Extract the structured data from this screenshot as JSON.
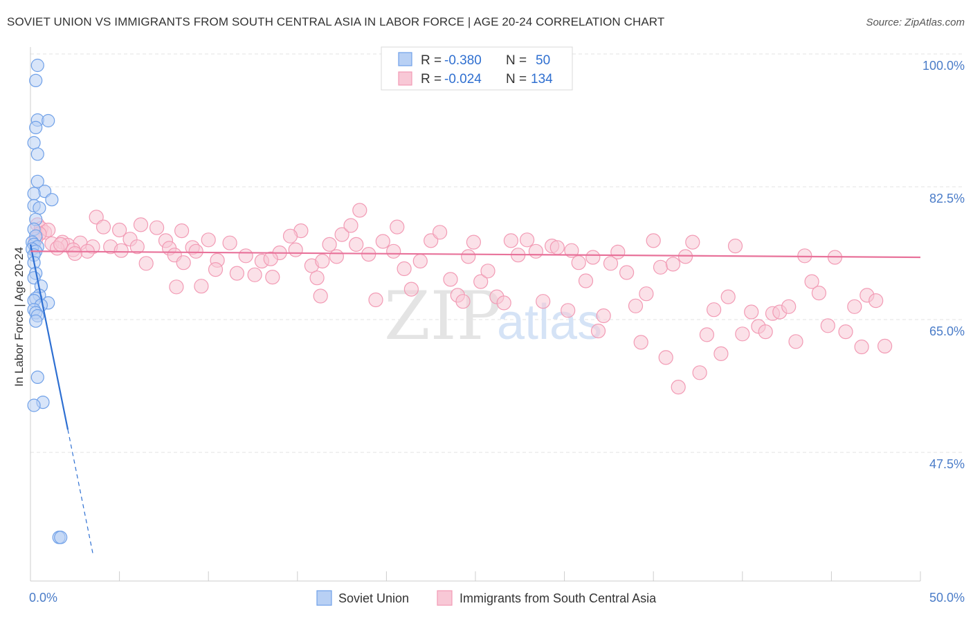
{
  "chart_data": {
    "type": "scatter",
    "title": "SOVIET UNION VS IMMIGRANTS FROM SOUTH CENTRAL ASIA IN LABOR FORCE | AGE 20-24 CORRELATION CHART",
    "source": "Source: ZipAtlas.com",
    "ylabel": "In Labor Force | Age 20-24",
    "xlim": [
      0,
      50
    ],
    "ylim": [
      30,
      100
    ],
    "x_tick_labels": [
      "0.0%",
      "50.0%"
    ],
    "y_ticks": [
      {
        "value": 100.0,
        "label": "100.0%"
      },
      {
        "value": 82.5,
        "label": "82.5%"
      },
      {
        "value": 65.0,
        "label": "65.0%"
      },
      {
        "value": 47.5,
        "label": "47.5%"
      }
    ],
    "grid": true,
    "watermark": {
      "zip": "ZIP",
      "atlas": "atlas"
    },
    "legend": {
      "position": "top-center",
      "rows": [
        {
          "r_label": "R = ",
          "r_value": "-0.380",
          "n_label": "N = ",
          "n_value": "50"
        },
        {
          "r_label": "R = ",
          "r_value": "-0.024",
          "n_label": "N = ",
          "n_value": "134"
        }
      ]
    },
    "series": [
      {
        "name": "Soviet Union",
        "color": "#6fa0e8",
        "fill": "#b8d0f4",
        "trend": {
          "x0": 0.0,
          "y0": 74.9,
          "x1": 2.1,
          "y1": 50.5,
          "dash_to_x": 3.5,
          "line_color": "#2d6fd2"
        },
        "points": [
          [
            0.4,
            98.5
          ],
          [
            0.3,
            96.5
          ],
          [
            0.4,
            91.3
          ],
          [
            1.0,
            91.2
          ],
          [
            0.3,
            90.3
          ],
          [
            0.2,
            88.3
          ],
          [
            0.4,
            86.8
          ],
          [
            0.4,
            83.2
          ],
          [
            0.8,
            81.9
          ],
          [
            0.2,
            81.6
          ],
          [
            1.2,
            80.8
          ],
          [
            0.2,
            80.0
          ],
          [
            0.5,
            79.7
          ],
          [
            0.3,
            78.2
          ],
          [
            0.2,
            76.9
          ],
          [
            0.3,
            76.0
          ],
          [
            0.1,
            75.2
          ],
          [
            0.2,
            74.9
          ],
          [
            0.4,
            74.6
          ],
          [
            0.1,
            74.3
          ],
          [
            0.3,
            74.0
          ],
          [
            0.2,
            73.5
          ],
          [
            0.2,
            72.5
          ],
          [
            0.3,
            71.1
          ],
          [
            0.2,
            70.5
          ],
          [
            0.6,
            69.4
          ],
          [
            0.5,
            68.2
          ],
          [
            0.3,
            67.8
          ],
          [
            0.2,
            67.5
          ],
          [
            1.0,
            67.2
          ],
          [
            0.6,
            66.9
          ],
          [
            0.2,
            66.3
          ],
          [
            0.3,
            65.9
          ],
          [
            0.4,
            65.5
          ],
          [
            0.3,
            64.8
          ],
          [
            0.4,
            57.4
          ],
          [
            0.7,
            54.1
          ],
          [
            0.2,
            53.7
          ],
          [
            1.6,
            36.3
          ],
          [
            1.7,
            36.3
          ]
        ]
      },
      {
        "name": "Immigrants from South Central Asia",
        "color": "#f29ab4",
        "fill": "#f8c8d6",
        "trend": {
          "x0": 0.0,
          "y0": 74.0,
          "x1": 50.0,
          "y1": 73.2,
          "line_color": "#e8729a"
        },
        "points": [
          [
            0.4,
            77.5
          ],
          [
            0.6,
            77.0
          ],
          [
            0.8,
            76.5
          ],
          [
            1.0,
            76.8
          ],
          [
            0.5,
            76.3
          ],
          [
            0.3,
            75.6
          ],
          [
            1.2,
            75.0
          ],
          [
            1.8,
            75.2
          ],
          [
            2.1,
            74.8
          ],
          [
            2.8,
            75.1
          ],
          [
            3.5,
            74.6
          ],
          [
            1.5,
            74.4
          ],
          [
            2.4,
            74.2
          ],
          [
            3.2,
            74.0
          ],
          [
            2.5,
            73.7
          ],
          [
            1.7,
            74.9
          ],
          [
            4.5,
            74.6
          ],
          [
            5.1,
            74.1
          ],
          [
            3.7,
            78.5
          ],
          [
            4.1,
            77.2
          ],
          [
            5.0,
            76.8
          ],
          [
            5.6,
            75.6
          ],
          [
            6.0,
            74.6
          ],
          [
            6.2,
            77.5
          ],
          [
            7.1,
            77.1
          ],
          [
            7.6,
            75.4
          ],
          [
            7.8,
            74.4
          ],
          [
            6.5,
            72.4
          ],
          [
            8.1,
            73.5
          ],
          [
            9.1,
            74.5
          ],
          [
            8.6,
            72.5
          ],
          [
            9.3,
            74.0
          ],
          [
            8.5,
            76.7
          ],
          [
            10.0,
            75.5
          ],
          [
            10.5,
            72.8
          ],
          [
            11.2,
            75.1
          ],
          [
            11.6,
            71.1
          ],
          [
            10.4,
            71.6
          ],
          [
            9.6,
            69.4
          ],
          [
            8.2,
            69.3
          ],
          [
            12.1,
            73.4
          ],
          [
            12.6,
            70.9
          ],
          [
            13.0,
            72.7
          ],
          [
            13.6,
            70.6
          ],
          [
            14.0,
            73.8
          ],
          [
            13.5,
            73.0
          ],
          [
            14.9,
            74.2
          ],
          [
            15.2,
            76.7
          ],
          [
            14.6,
            76.0
          ],
          [
            15.8,
            72.1
          ],
          [
            16.1,
            70.5
          ],
          [
            16.4,
            72.7
          ],
          [
            16.8,
            74.9
          ],
          [
            17.2,
            73.3
          ],
          [
            16.3,
            68.1
          ],
          [
            17.5,
            76.2
          ],
          [
            18.0,
            77.4
          ],
          [
            18.5,
            79.4
          ],
          [
            18.3,
            74.9
          ],
          [
            19.0,
            73.6
          ],
          [
            19.4,
            67.6
          ],
          [
            19.8,
            75.3
          ],
          [
            20.4,
            74.0
          ],
          [
            20.6,
            77.2
          ],
          [
            21.0,
            71.7
          ],
          [
            21.4,
            69.0
          ],
          [
            21.9,
            72.7
          ],
          [
            22.5,
            75.4
          ],
          [
            23.0,
            76.5
          ],
          [
            23.6,
            70.3
          ],
          [
            24.0,
            68.2
          ],
          [
            24.3,
            67.4
          ],
          [
            24.6,
            73.3
          ],
          [
            24.9,
            75.2
          ],
          [
            25.3,
            70.0
          ],
          [
            25.7,
            71.4
          ],
          [
            26.2,
            68.0
          ],
          [
            26.6,
            67.2
          ],
          [
            27.0,
            75.4
          ],
          [
            27.4,
            73.5
          ],
          [
            27.9,
            75.5
          ],
          [
            28.4,
            74.0
          ],
          [
            28.8,
            67.4
          ],
          [
            29.3,
            74.7
          ],
          [
            29.6,
            74.5
          ],
          [
            30.2,
            66.2
          ],
          [
            30.4,
            74.1
          ],
          [
            30.8,
            72.5
          ],
          [
            31.2,
            70.1
          ],
          [
            31.6,
            73.2
          ],
          [
            31.9,
            63.5
          ],
          [
            32.2,
            65.5
          ],
          [
            32.6,
            72.4
          ],
          [
            33.0,
            73.9
          ],
          [
            33.5,
            71.2
          ],
          [
            34.0,
            66.8
          ],
          [
            34.3,
            62.0
          ],
          [
            34.6,
            68.4
          ],
          [
            35.0,
            75.4
          ],
          [
            35.4,
            71.9
          ],
          [
            35.7,
            60.0
          ],
          [
            36.1,
            72.3
          ],
          [
            36.4,
            56.1
          ],
          [
            36.8,
            73.3
          ],
          [
            37.2,
            75.2
          ],
          [
            37.6,
            58.0
          ],
          [
            38.0,
            63.0
          ],
          [
            38.4,
            66.3
          ],
          [
            38.8,
            60.5
          ],
          [
            39.2,
            68.0
          ],
          [
            39.6,
            74.7
          ],
          [
            40.0,
            63.1
          ],
          [
            40.5,
            66.0
          ],
          [
            40.9,
            64.1
          ],
          [
            41.3,
            63.4
          ],
          [
            41.7,
            65.8
          ],
          [
            42.1,
            66.0
          ],
          [
            42.6,
            66.7
          ],
          [
            43.0,
            62.1
          ],
          [
            43.5,
            73.4
          ],
          [
            43.9,
            70.0
          ],
          [
            44.3,
            68.5
          ],
          [
            44.8,
            64.2
          ],
          [
            45.2,
            73.2
          ],
          [
            45.8,
            63.4
          ],
          [
            46.3,
            66.7
          ],
          [
            46.7,
            61.4
          ],
          [
            47.0,
            68.2
          ],
          [
            47.5,
            67.5
          ],
          [
            48.0,
            61.5
          ]
        ]
      }
    ]
  },
  "bottom_legend": [
    {
      "label": "Soviet Union"
    },
    {
      "label": "Immigrants from South Central Asia"
    }
  ]
}
